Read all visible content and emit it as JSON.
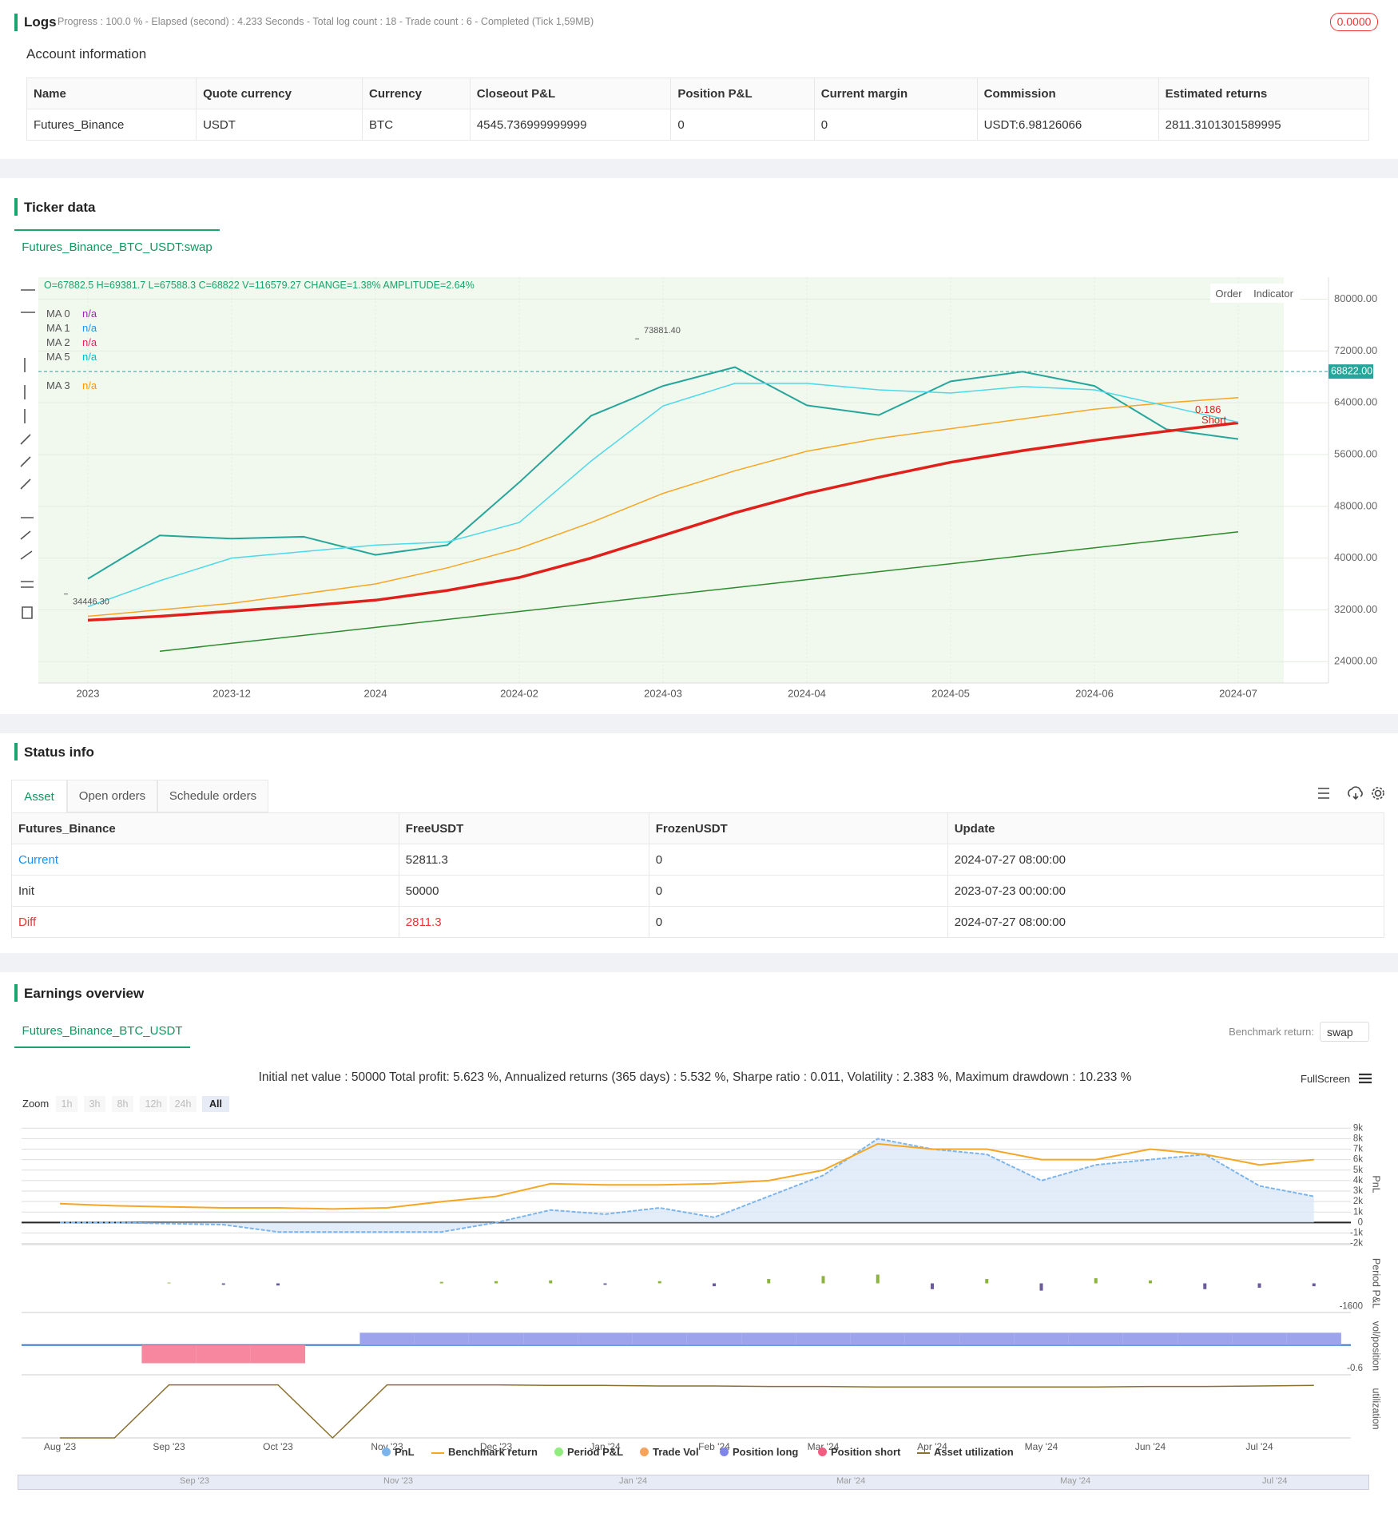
{
  "logs": {
    "title": "Logs",
    "status": "Progress : 100.0 % - Elapsed (second) : 4.233  Seconds - Total log count : 18 - Trade count : 6 - Completed (Tick 1,59MB)",
    "badge": "0.0000"
  },
  "account": {
    "title": "Account information",
    "columns": [
      "Name",
      "Quote currency",
      "Currency",
      "Closeout P&L",
      "Position P&L",
      "Current margin",
      "Commission",
      "Estimated returns"
    ],
    "rows": [
      [
        "Futures_Binance",
        "USDT",
        "BTC",
        "4545.736999999999",
        "0",
        "0",
        "USDT:6.98126066",
        "2811.3101301589995"
      ]
    ]
  },
  "ticker": {
    "title": "Ticker data",
    "tab": "Futures_Binance_BTC_USDT:swap",
    "info": "O=67882.5 H=69381.7 L=67588.3 C=68822 V=116579.27 CHANGE=1.38% AMPLITUDE=2.64%",
    "buttons": [
      "Order",
      "Indicator"
    ],
    "legend": [
      {
        "name": "MA 0",
        "value": "n/a",
        "color": "#9c27b0"
      },
      {
        "name": "MA 1",
        "value": "n/a",
        "color": "#2196f3"
      },
      {
        "name": "MA 2",
        "value": "n/a",
        "color": "#e91e63"
      },
      {
        "name": "MA 5",
        "value": "n/a",
        "color": "#00bcd4"
      },
      {
        "name": "MA 3",
        "value": "n/a",
        "color": "#ff9800"
      }
    ],
    "signal": [
      "0.186",
      "Short"
    ]
  },
  "status": {
    "title": "Status info",
    "tabs": [
      "Asset",
      "Open orders",
      "Schedule orders"
    ],
    "columns": [
      "Futures_Binance",
      "FreeUSDT",
      "FrozenUSDT",
      "Update"
    ],
    "rows": [
      [
        "Current",
        "52811.3",
        "0",
        "2024-07-27 08:00:00"
      ],
      [
        "Init",
        "50000",
        "0",
        "2023-07-23 00:00:00"
      ],
      [
        "Diff",
        "2811.3",
        "0",
        "2024-07-27 08:00:00"
      ]
    ]
  },
  "earnings": {
    "title": "Earnings overview",
    "tab": "Futures_Binance_BTC_USDT",
    "benchmark_label": "Benchmark return:",
    "benchmark_value": "swap",
    "summary": "Initial net value : 50000 Total profit: 5.623 %, Annualized returns (365 days) : 5.532 %, Sharpe ratio : 0.011, Volatility : 2.383 %, Maximum drawdown : 10.233 %",
    "fullscreen": "FullScreen",
    "zoom_label": "Zoom",
    "zoom": [
      "1h",
      "3h",
      "8h",
      "12h",
      "24h",
      "All"
    ],
    "legend": [
      {
        "name": "PnL",
        "color": "#7cb5ec"
      },
      {
        "name": "Benchmark return",
        "color": "#f5a623"
      },
      {
        "name": "Period P&L",
        "color": "#90ed7d"
      },
      {
        "name": "Trade Vol",
        "color": "#f7a35c"
      },
      {
        "name": "Position long",
        "color": "#8085e9"
      },
      {
        "name": "Position short",
        "color": "#f15c80"
      },
      {
        "name": "Asset utilization",
        "color": "#8b6f2e"
      }
    ],
    "navigator": [
      "Sep '23",
      "Nov '23",
      "Jan '24",
      "Mar '24",
      "May '24",
      "Jul '24"
    ]
  },
  "chart_data": [
    {
      "type": "line",
      "categories": [
        "2023",
        null,
        "2023-12",
        null,
        "2024",
        null,
        "2024-02",
        null,
        "2024-03",
        null,
        "2024-04",
        null,
        "2024-05",
        null,
        "2024-06",
        null,
        "2024-07"
      ],
      "series": [
        {
          "color": "#26a69a",
          "line_width": 2,
          "values": [
            36800,
            43500,
            43000,
            43300,
            40500,
            42000,
            51700,
            62000,
            66600,
            69500,
            63600,
            62100,
            67300,
            68800,
            66600,
            59900,
            58400
          ]
        },
        {
          "color": "#e0201b",
          "line_width": 3.5,
          "values": [
            30400,
            31000,
            31800,
            32600,
            33500,
            35000,
            37000,
            40000,
            43500,
            47000,
            50000,
            52500,
            54800,
            56600,
            58200,
            59600,
            60900
          ]
        },
        {
          "color": "#f5a623",
          "line_width": 1.5,
          "values": [
            31000,
            32000,
            33000,
            34500,
            36000,
            38500,
            41500,
            45500,
            50000,
            53500,
            56500,
            58500,
            60000,
            61500,
            63000,
            64000,
            64800
          ]
        },
        {
          "color": "#4dd9e8",
          "line_width": 1.5,
          "values": [
            32500,
            36500,
            40000,
            41000,
            42000,
            42500,
            45500,
            55000,
            63500,
            67000,
            67000,
            66000,
            65500,
            66500,
            66000,
            63500,
            61000
          ]
        },
        {
          "color": "#2e8b2e",
          "line_width": 1.5,
          "values": [
            null,
            25600,
            26830,
            28060,
            29290,
            30520,
            31750,
            32980,
            34210,
            35440,
            36670,
            37900,
            39130,
            40360,
            41590,
            42820,
            44050
          ]
        }
      ],
      "ylim": [
        20700,
        83400
      ],
      "yticks": [
        {
          "value": 24000,
          "label": "24000.00"
        },
        {
          "value": 32000,
          "label": "32000.00"
        },
        {
          "value": 40000,
          "label": "40000.00"
        },
        {
          "value": 48000,
          "label": "48000.00"
        },
        {
          "value": 56000,
          "label": "56000.00"
        },
        {
          "value": 64000,
          "label": "64000.00"
        },
        {
          "value": 72000,
          "label": "72000.00"
        },
        {
          "value": 80000,
          "label": "80000.00"
        }
      ],
      "grid": true,
      "last_price": {
        "value": 68822,
        "label": "68822.00"
      },
      "annotations": [
        {
          "value": 73881.4,
          "label": "73881.40"
        },
        {
          "value": 34446.3,
          "label": "34446.30"
        }
      ]
    },
    {
      "type": "area",
      "y_label": "PnL",
      "categories": [
        "Aug '23",
        null,
        "Sep '23",
        null,
        "Oct '23",
        null,
        "Nov '23",
        null,
        "Dec '23",
        null,
        "Jan '24",
        null,
        "Feb '24",
        null,
        "Mar '24",
        null,
        "Apr '24",
        null,
        "May '24",
        null,
        "Jun '24",
        null,
        "Jul '24",
        null
      ],
      "series": [
        {
          "color": "#7cb5ec",
          "fill": "#dce9f7",
          "values": [
            0,
            0,
            -100,
            -200,
            -900,
            -900,
            -900,
            -900,
            0,
            1200,
            800,
            1400,
            500,
            2500,
            4500,
            8000,
            7000,
            6500,
            4000,
            5500,
            6000,
            6500,
            3500,
            2500
          ]
        },
        {
          "color": "#f5a623",
          "values": [
            1800,
            1600,
            1500,
            1400,
            1400,
            1300,
            1400,
            2000,
            2500,
            3700,
            3600,
            3600,
            3700,
            4000,
            5000,
            7500,
            7000,
            7000,
            6000,
            6000,
            7000,
            6500,
            5500,
            6000
          ]
        }
      ],
      "ylim": [
        -2100,
        9400
      ],
      "yticks": [
        {
          "value": -2000,
          "label": "-2k"
        },
        {
          "value": -1000,
          "label": "-1k"
        },
        0,
        {
          "value": 1000,
          "label": "1k"
        },
        {
          "value": 2000,
          "label": "2k"
        },
        {
          "value": 3000,
          "label": "3k"
        },
        {
          "value": 4000,
          "label": "4k"
        },
        {
          "value": 5000,
          "label": "5k"
        },
        {
          "value": 6000,
          "label": "6k"
        },
        {
          "value": 7000,
          "label": "7k"
        },
        {
          "value": 8000,
          "label": "8k"
        },
        {
          "value": 9000,
          "label": "9k"
        }
      ],
      "grid": true
    },
    {
      "type": "bar",
      "y_label": "Period P&L",
      "values": [
        0,
        0,
        50,
        -100,
        -150,
        0,
        0,
        100,
        150,
        200,
        -100,
        150,
        -200,
        300,
        500,
        600,
        -400,
        300,
        -500,
        350,
        200,
        -400,
        -300,
        -200
      ],
      "color": "#8bb43c",
      "negative_color": "#6b5b9a",
      "ylim": [
        -2000,
        2000
      ],
      "yticks": [
        -1600
      ]
    },
    {
      "type": "bar",
      "y_label": "vol/position",
      "values": [
        0,
        0,
        -0.47,
        -0.47,
        -0.47,
        0,
        0.32,
        0.32,
        0.32,
        0.32,
        0.32,
        0.32,
        0.32,
        0.32,
        0.32,
        0.32,
        0.32,
        0.32,
        0.32,
        0.32,
        0.32,
        0.32,
        0.32,
        0.32
      ],
      "color": "#9ea4ec",
      "negative_color": "#f7879f",
      "ylim": [
        -0.77,
        0.72
      ],
      "yticks": [
        -0.6
      ]
    },
    {
      "type": "line",
      "y_label": "utilization",
      "series": [
        {
          "color": "#8b6f2e",
          "line_width": 1.5,
          "values": [
            0,
            0,
            1,
            1,
            1,
            0,
            1,
            1,
            1,
            0.99,
            0.99,
            0.98,
            0.98,
            0.97,
            0.97,
            0.96,
            0.96,
            0.96,
            0.96,
            0.96,
            0.97,
            0.97,
            0.98,
            0.99
          ]
        }
      ],
      "ylim": [
        0,
        1.1
      ],
      "yticks": []
    }
  ]
}
